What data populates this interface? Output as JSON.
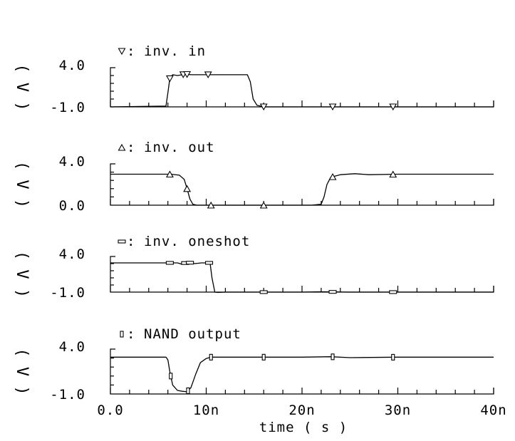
{
  "chart_data": {
    "type": "line",
    "xlabel": "time ( s )",
    "x_tick_labels": [
      "0.0",
      "10n",
      "20n",
      "30n",
      "40n"
    ],
    "xlim": [
      0,
      40
    ],
    "x_unit": "ns",
    "panels": [
      {
        "legend": "inv. in",
        "marker": "triangle-down",
        "ylabel": "( V )",
        "ylim": [
          -1.0,
          4.0
        ],
        "y_tick_labels": [
          "4.0",
          "-1.0"
        ],
        "series": {
          "name": "inv. in",
          "x": [
            0,
            5.8,
            6.0,
            6.2,
            6.5,
            7.0,
            7.8,
            8.5,
            10.0,
            12.0,
            14.3,
            14.6,
            14.9,
            15.3,
            16.0,
            20.0,
            25.0,
            30.0,
            40.0
          ],
          "y": [
            -1.0,
            -0.9,
            0.8,
            2.6,
            3.1,
            3.0,
            3.15,
            3.1,
            3.1,
            3.1,
            3.1,
            2.2,
            0.0,
            -0.8,
            -1.0,
            -1.0,
            -1.0,
            -1.0,
            -1.0
          ]
        },
        "markers_x": [
          6.2,
          7.6,
          8.0,
          10.2,
          16.0,
          23.2,
          29.5
        ]
      },
      {
        "legend": "inv. out",
        "marker": "triangle-up",
        "ylabel": "( V )",
        "ylim": [
          0.0,
          4.0
        ],
        "y_tick_labels": [
          "4.0",
          "0.0"
        ],
        "series": {
          "name": "inv. out",
          "x": [
            0,
            5.5,
            6.3,
            7.2,
            7.7,
            8.0,
            8.3,
            8.6,
            9.0,
            10.0,
            15.0,
            21.0,
            22.0,
            22.3,
            22.6,
            23.0,
            24.0,
            25.5,
            27.0,
            30.0,
            40.0
          ],
          "y": [
            3.0,
            3.0,
            3.0,
            2.9,
            2.5,
            1.6,
            0.6,
            0.1,
            0.0,
            0.0,
            0.0,
            0.0,
            0.1,
            0.8,
            2.0,
            2.7,
            2.95,
            3.05,
            2.95,
            3.0,
            3.0
          ]
        },
        "markers_x": [
          6.2,
          8.0,
          10.5,
          16.0,
          23.2,
          29.5
        ]
      },
      {
        "legend": "inv. oneshot",
        "marker": "flat-rect",
        "ylabel": "( V )",
        "ylim": [
          -1.0,
          4.0
        ],
        "y_tick_labels": [
          "4.0",
          "-1.0"
        ],
        "series": {
          "name": "inv. oneshot",
          "x": [
            0,
            6.0,
            7.0,
            7.5,
            8.0,
            8.8,
            9.5,
            10.4,
            10.6,
            10.9,
            11.2,
            12.0,
            20.0,
            22.0,
            25.0,
            30.0,
            40.0
          ],
          "y": [
            3.1,
            3.1,
            3.1,
            2.9,
            3.2,
            3.0,
            3.1,
            3.1,
            1.0,
            -1.0,
            -1.05,
            -1.0,
            -1.0,
            -0.95,
            -1.0,
            -1.0,
            -1.0
          ]
        },
        "markers_x": [
          6.2,
          7.8,
          8.3,
          10.3,
          16.0,
          23.2,
          29.5
        ]
      },
      {
        "legend": "NAND output",
        "marker": "tall-rect",
        "ylabel": "( V )",
        "ylim": [
          -1.0,
          4.0
        ],
        "y_tick_labels": [
          "4.0",
          "-1.0"
        ],
        "series": {
          "name": "NAND output",
          "x": [
            0,
            5.8,
            6.0,
            6.2,
            6.5,
            7.0,
            7.5,
            8.0,
            8.4,
            8.9,
            9.4,
            10.0,
            10.5,
            12.0,
            16.0,
            20.0,
            23.0,
            25.0,
            30.0,
            40.0
          ],
          "y": [
            3.1,
            3.1,
            2.8,
            1.5,
            0.0,
            -0.6,
            -0.7,
            -0.75,
            -0.3,
            1.2,
            2.5,
            2.95,
            3.1,
            3.1,
            3.1,
            3.1,
            3.15,
            3.05,
            3.1,
            3.1
          ]
        },
        "markers_x": [
          6.3,
          8.1,
          10.5,
          16.0,
          23.2,
          29.5
        ]
      }
    ]
  }
}
